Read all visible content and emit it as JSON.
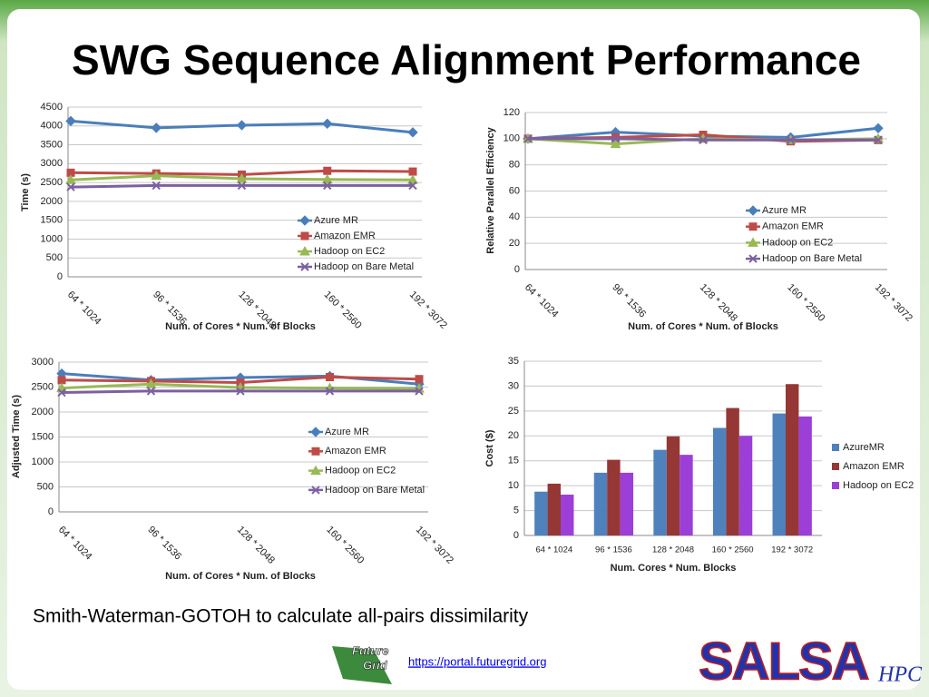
{
  "title": "SWG Sequence Alignment Performance",
  "caption": "Smith-Waterman-GOTOH to calculate all-pairs dissimilarity",
  "link": "https://portal.futuregrid.org",
  "logos": {
    "futuregrid": [
      "Future",
      "Grid"
    ],
    "salsa": "SALSA",
    "hpc": "HPC"
  },
  "chart_data": [
    {
      "type": "line",
      "x_label": "Num. of Cores * Num. of Blocks",
      "y_label": "Time (s)",
      "categories": [
        "64 * 1024",
        "96 * 1536",
        "128 * 2048",
        "160 * 2560",
        "192 * 3072"
      ],
      "ylim": [
        0,
        4500
      ],
      "yticks": [
        0,
        500,
        1000,
        1500,
        2000,
        2500,
        3000,
        3500,
        4000,
        4500
      ],
      "grid": true,
      "series": [
        {
          "name": "Azure MR",
          "color": "#4a7ebb",
          "values": [
            4130,
            3950,
            4020,
            4060,
            3830
          ]
        },
        {
          "name": "Amazon EMR",
          "color": "#be4b48",
          "values": [
            2760,
            2740,
            2710,
            2810,
            2790
          ]
        },
        {
          "name": "Hadoop on EC2",
          "color": "#98b954",
          "values": [
            2570,
            2680,
            2600,
            2580,
            2570
          ]
        },
        {
          "name": "Hadoop on Bare Metal",
          "color": "#7d60a0",
          "values": [
            2380,
            2420,
            2420,
            2420,
            2420
          ]
        }
      ]
    },
    {
      "type": "line",
      "x_label": "Num. of Cores * Num. of Blocks",
      "y_label": "Relative Parallel Efficiency",
      "categories": [
        "64 * 1024",
        "96 * 1536",
        "128 * 2048",
        "160 * 2560",
        "192 * 3072"
      ],
      "ylim": [
        0,
        120
      ],
      "yticks": [
        0,
        20,
        40,
        60,
        80,
        100,
        120
      ],
      "grid": true,
      "series": [
        {
          "name": "Azure MR",
          "color": "#4a7ebb",
          "values": [
            100,
            105,
            102,
            101,
            108
          ]
        },
        {
          "name": "Amazon EMR",
          "color": "#be4b48",
          "values": [
            100,
            101,
            103,
            98,
            99
          ]
        },
        {
          "name": "Hadoop on EC2",
          "color": "#98b954",
          "values": [
            100,
            96,
            100,
            99,
            100
          ]
        },
        {
          "name": "Hadoop on Bare Metal",
          "color": "#7d60a0",
          "values": [
            100,
            100,
            99,
            99,
            99
          ]
        }
      ]
    },
    {
      "type": "line",
      "x_label": "Num. of Cores * Num. of Blocks",
      "y_label": "Adjusted Time (s)",
      "categories": [
        "64 * 1024",
        "96 * 1536",
        "128 * 2048",
        "160 * 2560",
        "192 * 3072"
      ],
      "ylim": [
        0,
        3000
      ],
      "yticks": [
        0,
        500,
        1000,
        1500,
        2000,
        2500,
        3000
      ],
      "grid": true,
      "series": [
        {
          "name": "Azure MR",
          "color": "#4a7ebb",
          "values": [
            2770,
            2640,
            2690,
            2720,
            2560
          ]
        },
        {
          "name": "Amazon EMR",
          "color": "#be4b48",
          "values": [
            2640,
            2620,
            2590,
            2700,
            2660
          ]
        },
        {
          "name": "Hadoop on EC2",
          "color": "#98b954",
          "values": [
            2480,
            2560,
            2490,
            2480,
            2470
          ]
        },
        {
          "name": "Hadoop on Bare Metal",
          "color": "#7d60a0",
          "values": [
            2390,
            2420,
            2420,
            2420,
            2420
          ]
        }
      ]
    },
    {
      "type": "bar",
      "x_label": "Num. Cores * Num. Blocks",
      "y_label": "Cost ($)",
      "categories": [
        "64 * 1024",
        "96 * 1536",
        "128 * 2048",
        "160 * 2560",
        "192 * 3072"
      ],
      "ylim": [
        0,
        35
      ],
      "yticks": [
        0,
        5,
        10,
        15,
        20,
        25,
        30,
        35
      ],
      "grid": true,
      "series": [
        {
          "name": "AzureMR",
          "color": "#4f81bd",
          "values": [
            8.8,
            12.6,
            17.2,
            21.6,
            24.5
          ]
        },
        {
          "name": "Amazon EMR",
          "color": "#953735",
          "values": [
            10.4,
            15.2,
            19.9,
            25.6,
            30.4
          ]
        },
        {
          "name": "Hadoop on EC2",
          "color": "#9b3fd8",
          "values": [
            8.2,
            12.6,
            16.2,
            20.0,
            23.9
          ]
        }
      ]
    }
  ]
}
